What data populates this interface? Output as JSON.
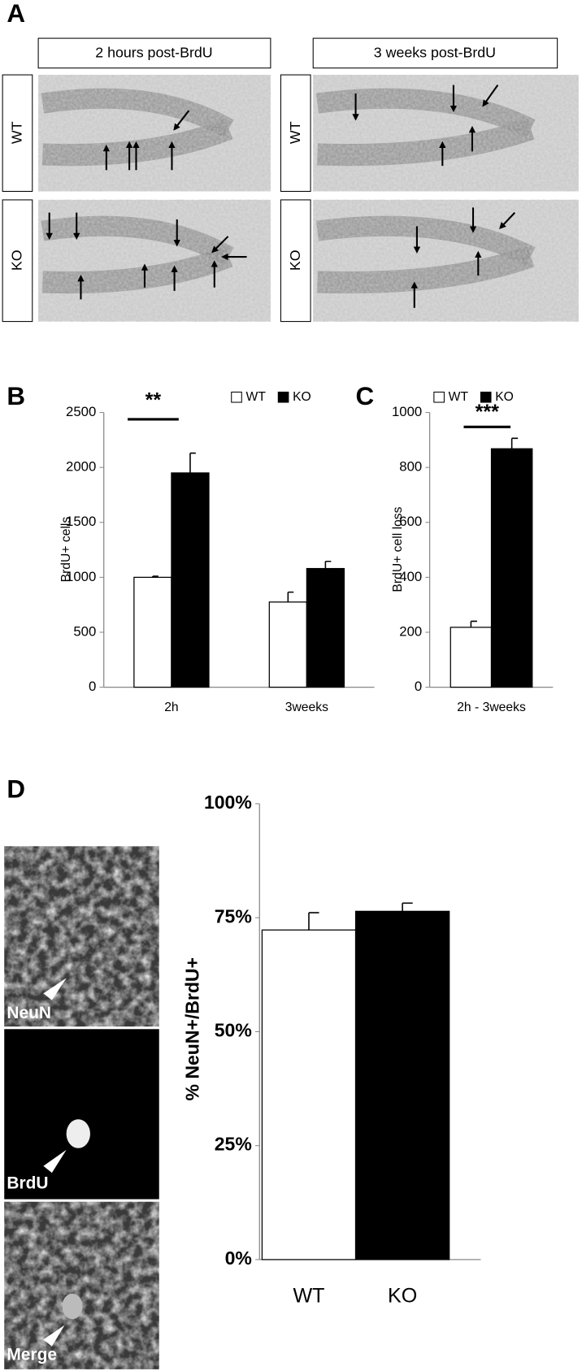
{
  "panel_labels": [
    "A",
    "B",
    "C",
    "D"
  ],
  "panel_a": {
    "columns": [
      "2 hours post-BrdU",
      "3 weeks post-BrdU"
    ],
    "rows": [
      "WT",
      "KO"
    ]
  },
  "panel_d_images": {
    "labels": [
      "NeuN",
      "BrdU",
      "Merge"
    ]
  },
  "chart_data": [
    {
      "type": "bar",
      "ylabel": "BrdU+ cells",
      "categories": [
        "2h",
        "3weeks"
      ],
      "series": [
        {
          "name": "WT",
          "color": "#ffffff",
          "values": [
            1000,
            775
          ],
          "errors": [
            10,
            90
          ]
        },
        {
          "name": "KO",
          "color": "#000000",
          "values": [
            1950,
            1080
          ],
          "errors": [
            180,
            65
          ]
        }
      ],
      "ylim": [
        0,
        2500
      ],
      "yticks": [
        0,
        500,
        1000,
        1500,
        2000,
        2500
      ],
      "significance": "**"
    },
    {
      "type": "bar",
      "ylabel": "BrdU+ cell loss",
      "categories": [
        "2h - 3weeks"
      ],
      "series": [
        {
          "name": "WT",
          "color": "#ffffff",
          "values": [
            218
          ],
          "errors": [
            22
          ]
        },
        {
          "name": "KO",
          "color": "#000000",
          "values": [
            868
          ],
          "errors": [
            38
          ]
        }
      ],
      "ylim": [
        0,
        1000
      ],
      "yticks": [
        0,
        200,
        400,
        600,
        800,
        1000
      ],
      "significance": "***"
    },
    {
      "type": "bar",
      "ylabel": "% NeuN+/BrdU+",
      "categories": [
        "WT",
        "KO"
      ],
      "values": [
        72.3,
        76.4
      ],
      "errors": [
        3.8,
        1.8
      ],
      "colors": [
        "#ffffff",
        "#000000"
      ],
      "ylim": [
        0,
        100
      ],
      "yticks": [
        {
          "value": 0,
          "label": "0%"
        },
        {
          "value": 25,
          "label": "25%"
        },
        {
          "value": 50,
          "label": "50%"
        },
        {
          "value": 75,
          "label": "75%"
        },
        {
          "value": 100,
          "label": "100%"
        }
      ]
    }
  ]
}
